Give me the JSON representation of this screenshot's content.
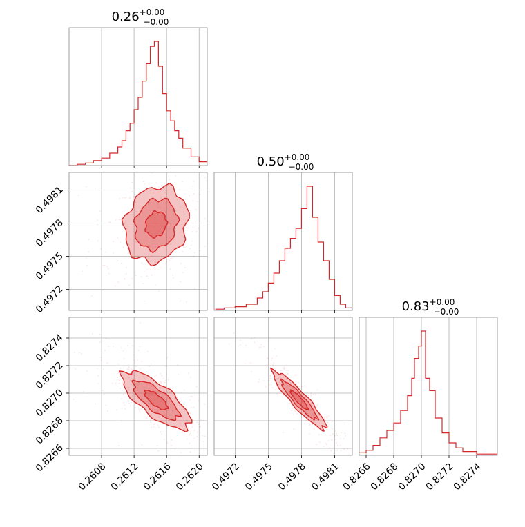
{
  "chart_data": {
    "type": "corner",
    "color": "#d62728",
    "parameters": [
      {
        "title_value": "0.26",
        "title_plus": "+0.00",
        "title_minus": "−0.00",
        "ticks": [
          "0.2608",
          "0.2612",
          "0.2616",
          "0.2620"
        ],
        "range": [
          0.2604,
          0.2621
        ]
      },
      {
        "title_value": "0.50",
        "title_plus": "+0.00",
        "title_minus": "−0.00",
        "ticks": [
          "0.4972",
          "0.4975",
          "0.4978",
          "0.4981"
        ],
        "range": [
          0.49701,
          0.49826
        ]
      },
      {
        "title_value": "0.83",
        "title_plus": "+0.00",
        "title_minus": "−0.00",
        "ticks": [
          "0.8266",
          "0.8268",
          "0.8270",
          "0.8272",
          "0.8274"
        ],
        "range": [
          0.82655,
          0.82755
        ]
      }
    ],
    "histograms": [
      {
        "name": "param-1",
        "x": [
          0.2604,
          0.2605,
          0.2606,
          0.2607,
          0.2608,
          0.2609,
          0.261,
          0.26105,
          0.2611,
          0.26115,
          0.2612,
          0.26125,
          0.2613,
          0.26135,
          0.2614,
          0.26145,
          0.2615,
          0.26155,
          0.2616,
          0.26165,
          0.2617,
          0.26175,
          0.2618,
          0.2619,
          0.262,
          0.2621
        ],
        "y": [
          0.0,
          0.01,
          0.02,
          0.04,
          0.06,
          0.1,
          0.15,
          0.2,
          0.28,
          0.34,
          0.45,
          0.55,
          0.68,
          0.82,
          0.96,
          1.0,
          0.8,
          0.58,
          0.44,
          0.36,
          0.28,
          0.22,
          0.14,
          0.07,
          0.03,
          0.01
        ]
      },
      {
        "name": "param-2",
        "x": [
          0.49702,
          0.4971,
          0.4972,
          0.4973,
          0.4974,
          0.49745,
          0.4975,
          0.49755,
          0.4976,
          0.49765,
          0.4977,
          0.49775,
          0.4978,
          0.49785,
          0.4979,
          0.49795,
          0.498,
          0.49805,
          0.4981,
          0.49815,
          0.4982,
          0.49826
        ],
        "y": [
          0.01,
          0.02,
          0.03,
          0.05,
          0.1,
          0.15,
          0.22,
          0.3,
          0.4,
          0.5,
          0.58,
          0.66,
          0.82,
          1.0,
          0.75,
          0.55,
          0.4,
          0.25,
          0.12,
          0.05,
          0.02,
          0.01
        ]
      },
      {
        "name": "param-3",
        "x": [
          0.82655,
          0.8266,
          0.82665,
          0.8267,
          0.82675,
          0.8268,
          0.82685,
          0.8269,
          0.82693,
          0.82695,
          0.82698,
          0.827,
          0.82703,
          0.82706,
          0.8271,
          0.82715,
          0.8272,
          0.82725,
          0.8273,
          0.8274,
          0.82755
        ],
        "y": [
          0.02,
          0.04,
          0.08,
          0.14,
          0.2,
          0.26,
          0.36,
          0.48,
          0.62,
          0.78,
          0.88,
          1.0,
          0.62,
          0.52,
          0.3,
          0.18,
          0.1,
          0.06,
          0.03,
          0.01,
          0.01
        ]
      }
    ],
    "contours": [
      {
        "name": "p1-vs-p2",
        "center": [
          0.26147,
          0.49779
        ],
        "sx": 0.00026,
        "sy": 0.00023,
        "rho": 0.15
      },
      {
        "name": "p1-vs-p3",
        "center": [
          0.26147,
          0.82695
        ],
        "sx": 0.00028,
        "sy": 0.00014,
        "rho": -0.75
      },
      {
        "name": "p2-vs-p3",
        "center": [
          0.49778,
          0.82695
        ],
        "sx": 0.00016,
        "sy": 0.00014,
        "rho": -0.92
      }
    ],
    "levels": [
      0.5,
      1.0,
      1.5
    ],
    "grid": true
  }
}
